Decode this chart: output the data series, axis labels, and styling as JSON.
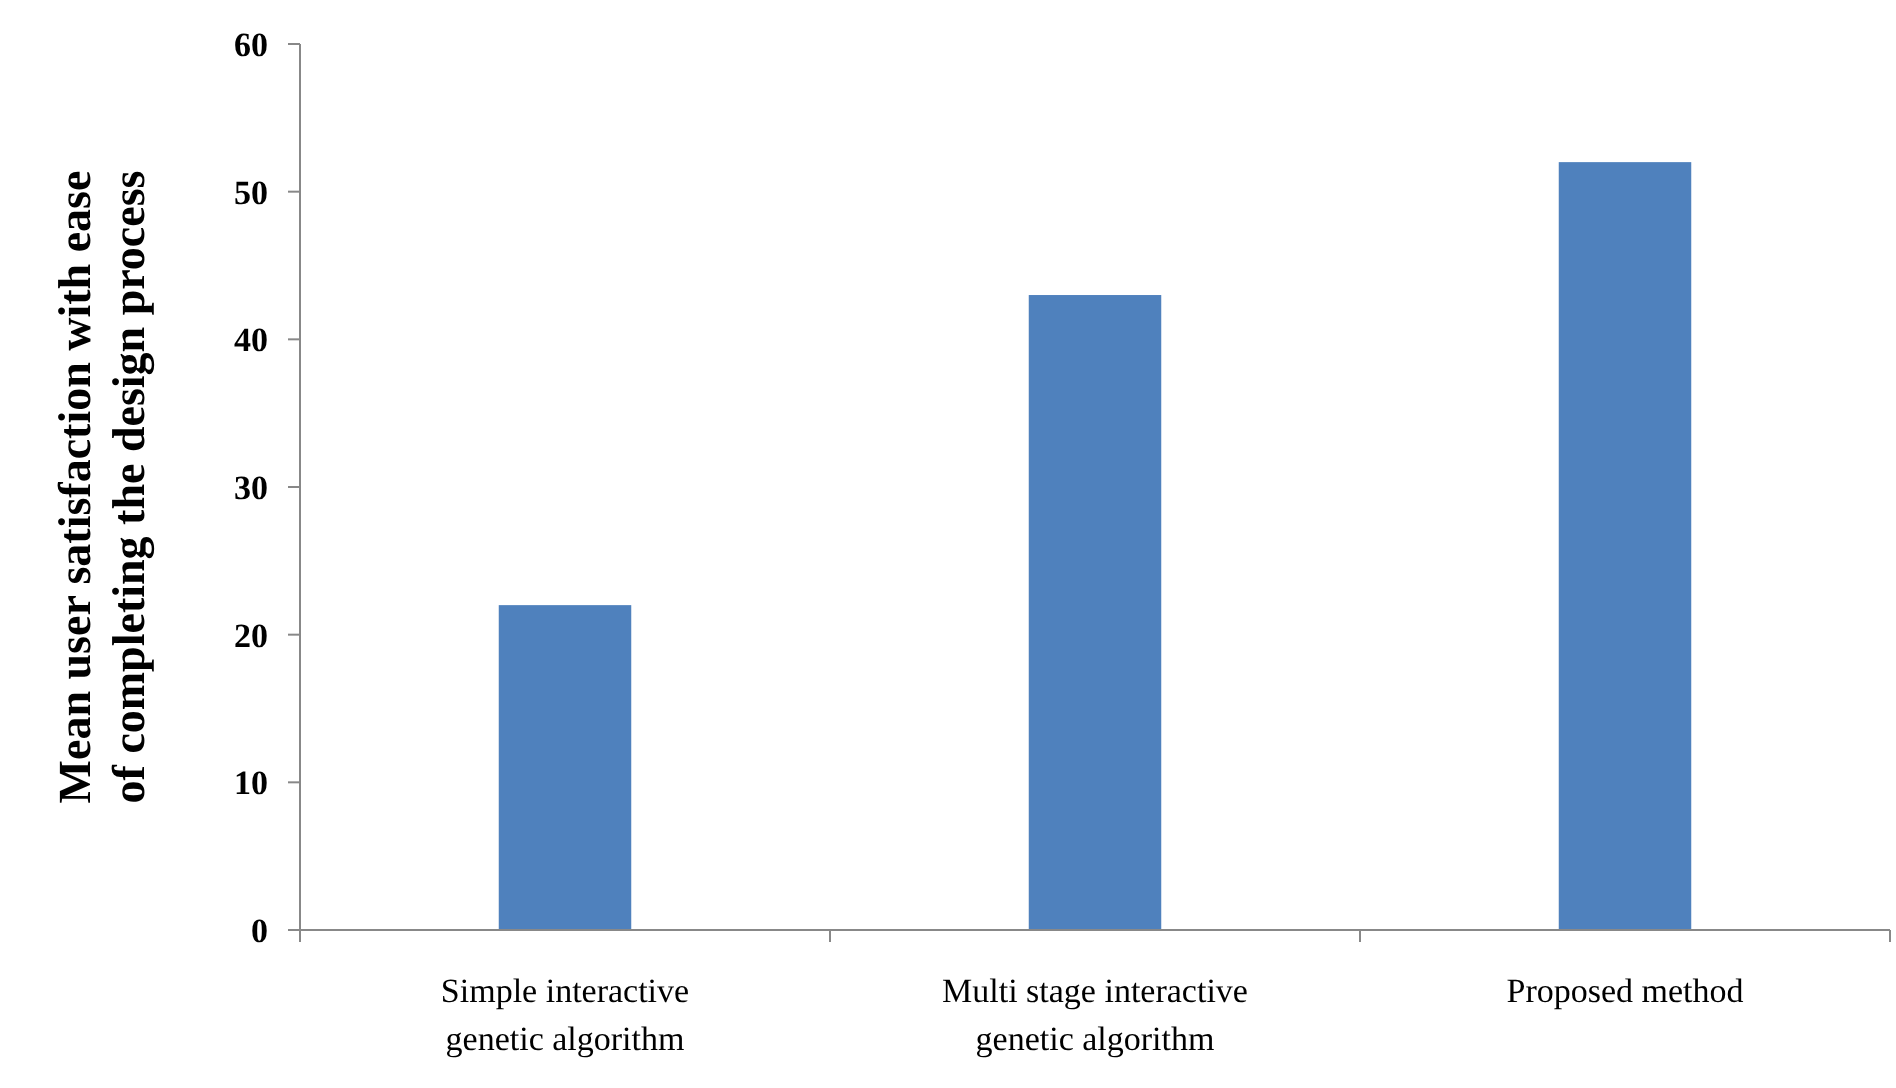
{
  "chart_data": {
    "type": "bar",
    "ylabel": "Mean user satisfaction with ease\nof completing the design process",
    "categories": [
      "Simple interactive\ngenetic algorithm",
      "Multi stage interactive\ngenetic algorithm",
      "Proposed method"
    ],
    "values": [
      22,
      43,
      52
    ],
    "color": "#4f81bd",
    "ylim": [
      0,
      60
    ],
    "yticks": [
      0,
      10,
      20,
      30,
      40,
      50,
      60
    ],
    "grid": false
  }
}
